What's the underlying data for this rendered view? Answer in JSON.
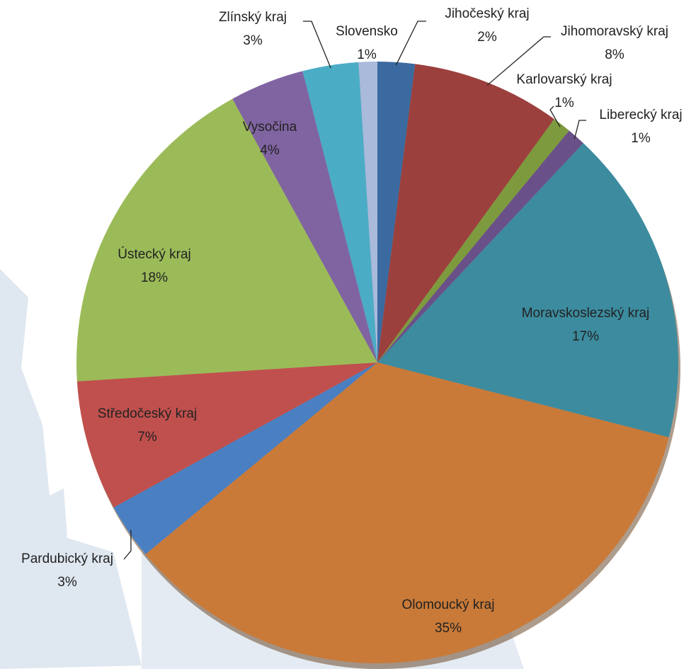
{
  "chart_data": {
    "type": "pie",
    "categories": [
      "Jihočeský kraj",
      "Jihomoravský kraj",
      "Karlovarský kraj",
      "Liberecký kraj",
      "Moravskoslezský kraj",
      "Olomoucký kraj",
      "Pardubický kraj",
      "Středočeský kraj",
      "Ústecký kraj",
      "Vysočina",
      "Zlínský kraj",
      "Slovensko"
    ],
    "values": [
      2,
      8,
      1,
      1,
      17,
      35,
      3,
      7,
      18,
      4,
      3,
      1
    ],
    "value_labels": [
      "2%",
      "8%",
      "1%",
      "1%",
      "17%",
      "35%",
      "3%",
      "7%",
      "18%",
      "4%",
      "3%",
      "1%"
    ],
    "colors": [
      "#3b6aa0",
      "#9c403d",
      "#7d9b3e",
      "#6a5088",
      "#3c8b9e",
      "#c97a38",
      "#4a7fc2",
      "#c0504d",
      "#9bbb59",
      "#8064a2",
      "#4bacc6",
      "#a9badb"
    ]
  }
}
